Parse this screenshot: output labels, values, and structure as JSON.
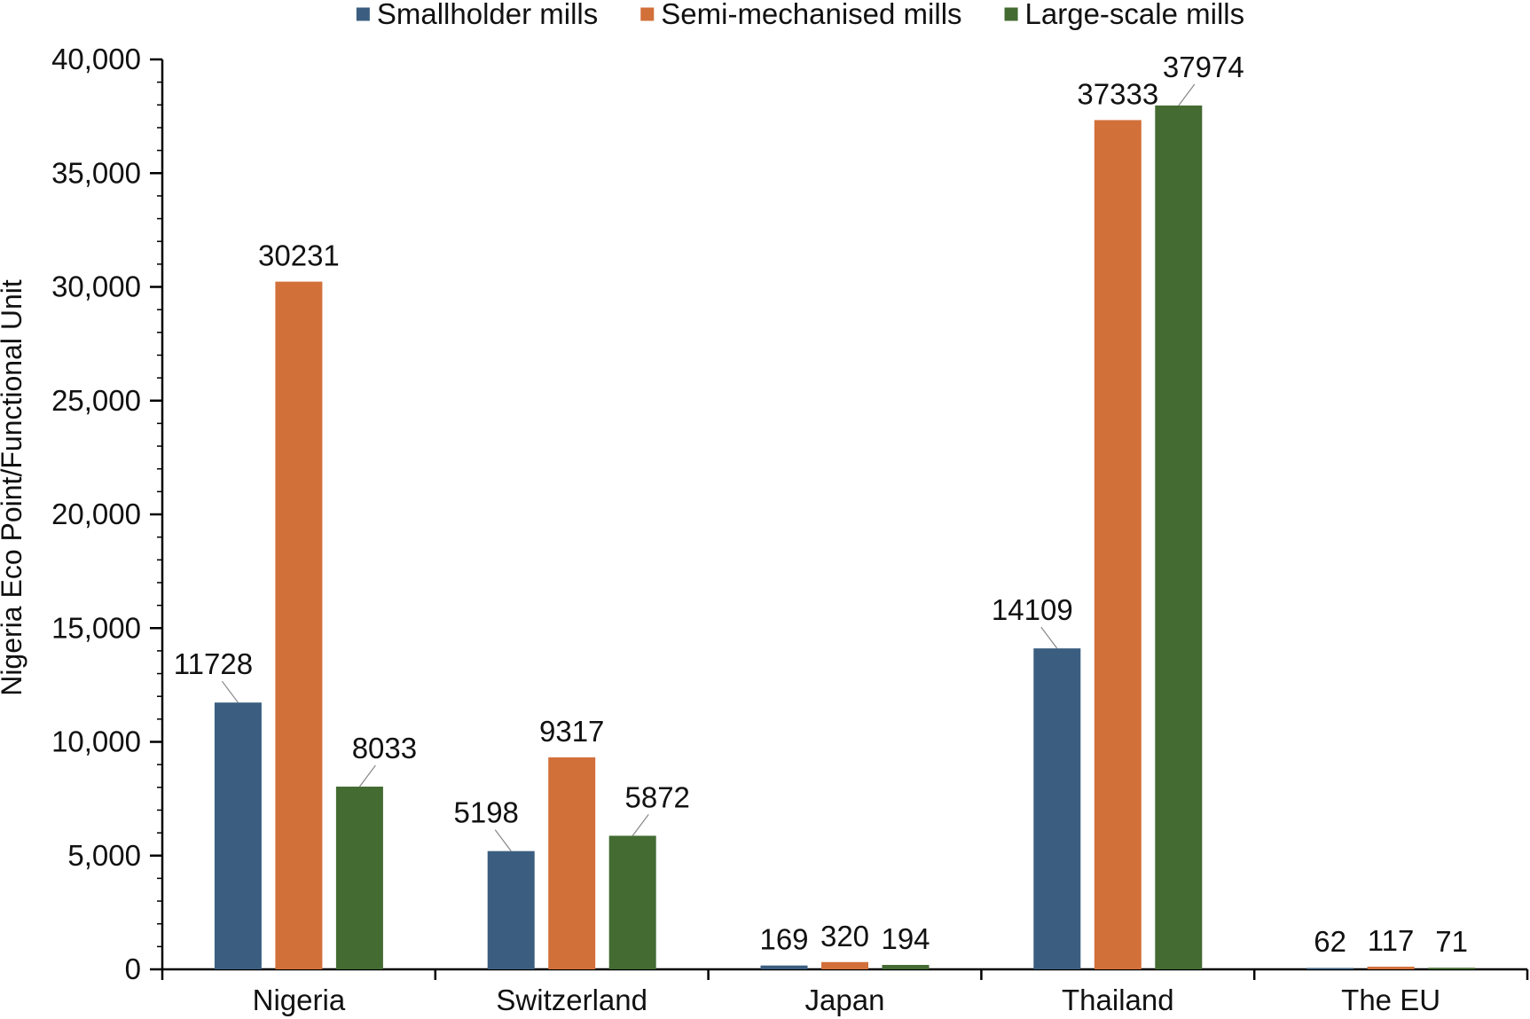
{
  "chart_data": {
    "type": "bar",
    "title": "",
    "xlabel": "",
    "ylabel": "Nigeria Eco Point/Functional Unit",
    "categories": [
      "Nigeria",
      "Switzerland",
      "Japan",
      "Thailand",
      "The EU"
    ],
    "series": [
      {
        "name": "Smallholder mills",
        "color": "#3b5e80",
        "values": [
          11728,
          5198,
          169,
          14109,
          62
        ]
      },
      {
        "name": "Semi-mechanised mills",
        "color": "#d2703a",
        "values": [
          30231,
          9317,
          320,
          37333,
          117
        ]
      },
      {
        "name": "Large-scale mills",
        "color": "#436b32",
        "values": [
          8033,
          5872,
          194,
          37974,
          71
        ]
      }
    ],
    "ylim": [
      0,
      40000
    ],
    "yticks": [
      0,
      5000,
      10000,
      15000,
      20000,
      25000,
      30000,
      35000,
      40000
    ],
    "ytick_labels": [
      "0",
      "5,000",
      "10,000",
      "15,000",
      "20,000",
      "25,000",
      "30,000",
      "35,000",
      "40,000"
    ],
    "legend_position": "top",
    "grid": false
  }
}
